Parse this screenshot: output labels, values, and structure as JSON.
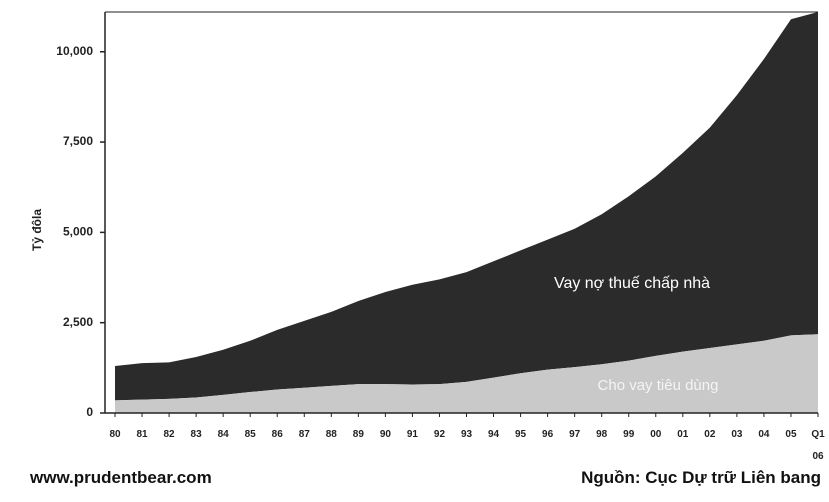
{
  "chart_data": {
    "type": "stacked_area",
    "y_label": "Tỷ đôla",
    "categories": [
      "80",
      "81",
      "82",
      "83",
      "84",
      "85",
      "86",
      "87",
      "88",
      "89",
      "90",
      "91",
      "92",
      "93",
      "94",
      "95",
      "96",
      "97",
      "98",
      "99",
      "00",
      "01",
      "02",
      "03",
      "04",
      "05",
      "Q1\n06"
    ],
    "series": [
      {
        "name": "Cho vay tiêu dùng",
        "color": "#c9c9c9",
        "values": [
          350,
          370,
          390,
          430,
          500,
          580,
          650,
          700,
          750,
          800,
          800,
          790,
          800,
          860,
          980,
          1100,
          1200,
          1270,
          1350,
          1450,
          1580,
          1700,
          1800,
          1900,
          2000,
          2150,
          2180
        ]
      },
      {
        "name": "Vay nợ thuế chấp nhà",
        "color": "#2b2b2b",
        "values": [
          950,
          1010,
          1010,
          1120,
          1250,
          1420,
          1650,
          1850,
          2050,
          2300,
          2550,
          2760,
          2900,
          3040,
          3220,
          3400,
          3600,
          3830,
          4150,
          4550,
          4970,
          5500,
          6100,
          6900,
          7800,
          8750,
          8920
        ]
      }
    ],
    "ylim": [
      0,
      11100
    ],
    "yticks": [
      0,
      {
        "value": 2500,
        "label": "2,500"
      },
      {
        "value": 5000,
        "label": "5,000"
      },
      {
        "value": 7500,
        "label": "7,500"
      },
      {
        "value": 10000,
        "label": "10,000"
      }
    ],
    "source_left": "www.prudentbear.com",
    "source_right": "Nguồn: Cục Dự trữ Liên bang"
  }
}
